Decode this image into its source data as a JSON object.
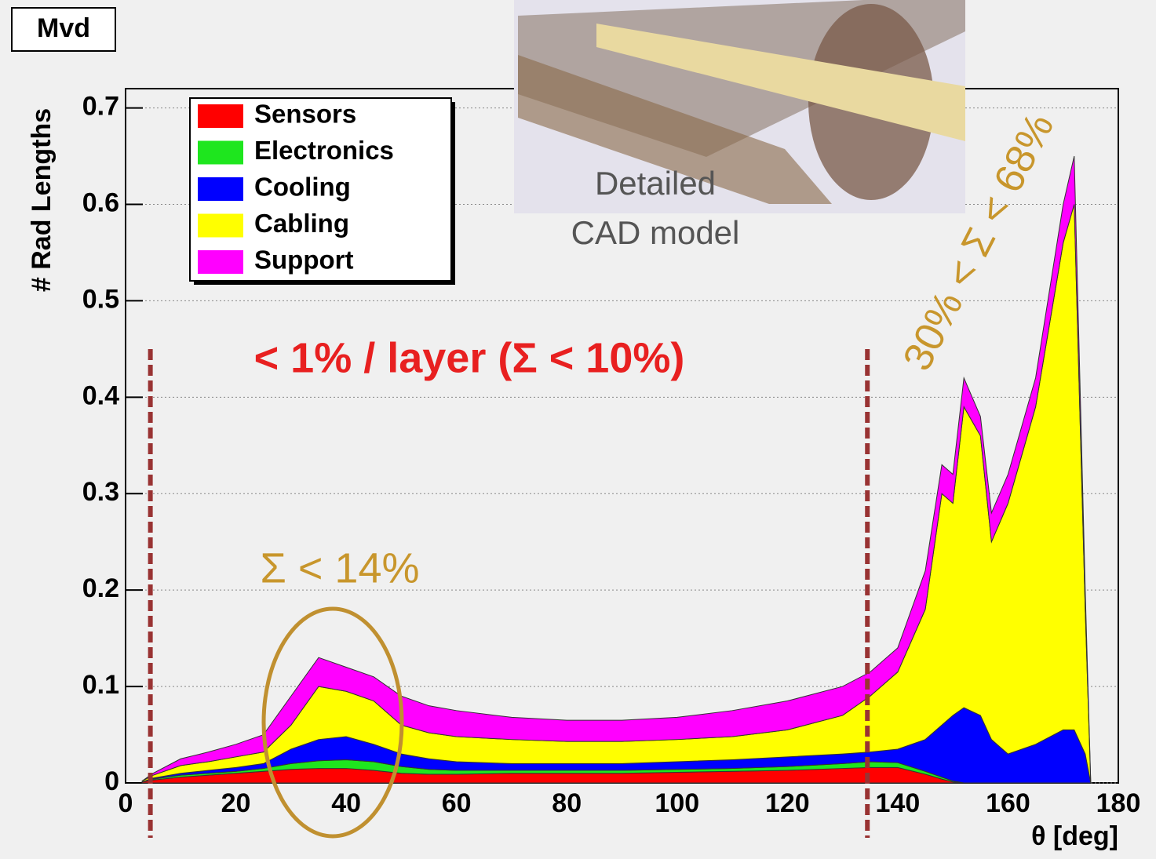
{
  "chart_data": {
    "type": "stacked_area",
    "badge": "Mvd",
    "y_label": "# Rad Lengths",
    "x_label": "θ [deg]",
    "annotations": [
      "< 1% / layer (Σ < 10%)",
      "Σ < 14%",
      "30% < Σ < 68%",
      "Detailed",
      "CAD model"
    ],
    "x": [
      3,
      5,
      10,
      15,
      20,
      25,
      30,
      35,
      40,
      45,
      50,
      55,
      60,
      70,
      80,
      90,
      100,
      110,
      120,
      130,
      135,
      140,
      145,
      148,
      150,
      152,
      155,
      157,
      160,
      165,
      170,
      172,
      174,
      175
    ],
    "series": [
      {
        "name": "Sensors",
        "color": "#ff0000",
        "values": [
          0.001,
          0.003,
          0.006,
          0.008,
          0.01,
          0.012,
          0.014,
          0.015,
          0.015,
          0.013,
          0.01,
          0.009,
          0.009,
          0.01,
          0.01,
          0.01,
          0.011,
          0.012,
          0.013,
          0.015,
          0.016,
          0.016,
          0.009,
          0.004,
          0.001,
          0,
          0,
          0,
          0,
          0,
          0,
          0,
          0,
          0
        ]
      },
      {
        "name": "Electronics",
        "color": "#1ee61e",
        "values": [
          0,
          0.001,
          0.002,
          0.002,
          0.002,
          0.003,
          0.006,
          0.008,
          0.009,
          0.009,
          0.007,
          0.005,
          0.004,
          0.003,
          0.003,
          0.003,
          0.003,
          0.003,
          0.004,
          0.005,
          0.006,
          0.005,
          0.003,
          0.002,
          0.001,
          0,
          0,
          0,
          0,
          0,
          0,
          0,
          0,
          0
        ]
      },
      {
        "name": "Cooling",
        "color": "#0000ff",
        "values": [
          0,
          0.001,
          0.002,
          0.003,
          0.004,
          0.005,
          0.015,
          0.022,
          0.024,
          0.018,
          0.013,
          0.011,
          0.009,
          0.007,
          0.007,
          0.007,
          0.008,
          0.009,
          0.01,
          0.01,
          0.01,
          0.014,
          0.033,
          0.054,
          0.068,
          0.078,
          0.07,
          0.045,
          0.03,
          0.04,
          0.055,
          0.055,
          0.03,
          0
        ]
      },
      {
        "name": "Cabling",
        "color": "#ffff00",
        "values": [
          0.001,
          0.003,
          0.008,
          0.009,
          0.011,
          0.012,
          0.025,
          0.055,
          0.047,
          0.045,
          0.03,
          0.027,
          0.026,
          0.025,
          0.023,
          0.023,
          0.023,
          0.024,
          0.028,
          0.04,
          0.058,
          0.08,
          0.135,
          0.24,
          0.22,
          0.312,
          0.29,
          0.205,
          0.26,
          0.35,
          0.505,
          0.545,
          0.15,
          0
        ]
      },
      {
        "name": "Support",
        "color": "#ff00ff",
        "values": [
          0,
          0.002,
          0.007,
          0.01,
          0.013,
          0.018,
          0.03,
          0.03,
          0.025,
          0.025,
          0.03,
          0.028,
          0.027,
          0.023,
          0.022,
          0.022,
          0.023,
          0.027,
          0.03,
          0.03,
          0.025,
          0.025,
          0.04,
          0.03,
          0.03,
          0.03,
          0.02,
          0.03,
          0.03,
          0.03,
          0.04,
          0.05,
          0.02,
          0
        ]
      }
    ],
    "xlim": [
      0,
      180
    ],
    "ylim": [
      0,
      0.72
    ],
    "xticks": [
      0,
      20,
      40,
      60,
      80,
      100,
      120,
      140,
      160,
      180
    ],
    "yticks": [
      0,
      0.1,
      0.2,
      0.3,
      0.4,
      0.5,
      0.6,
      0.7
    ],
    "reference_lines": [
      4.5,
      134.5
    ],
    "grid": true
  }
}
